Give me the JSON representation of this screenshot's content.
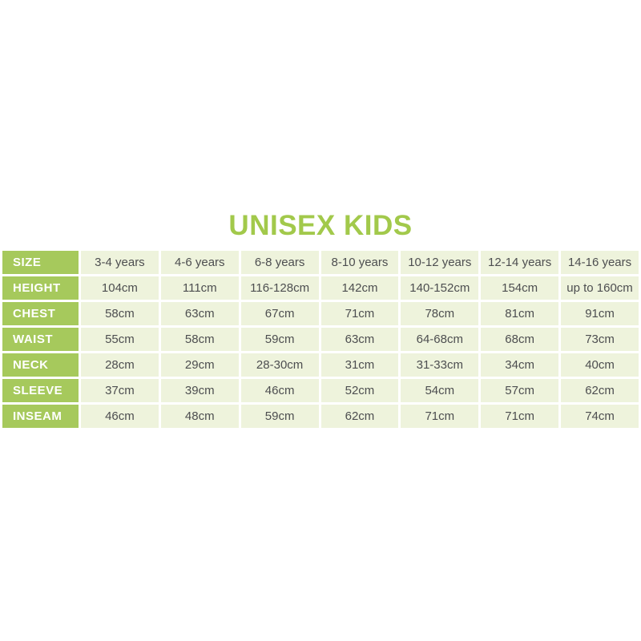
{
  "title": "UNISEX KIDS",
  "colors": {
    "title_green": "#a2c94b",
    "label_column_bg": "#a6c95c",
    "label_column_text": "#ffffff",
    "data_cell_bg": "#eef3dc",
    "data_cell_text": "#4d4e50",
    "cell_gap": "#ffffff"
  },
  "chart_data": {
    "type": "table",
    "title": "UNISEX KIDS",
    "rows": [
      {
        "label": "SIZE",
        "values": [
          "3-4 years",
          "4-6 years",
          "6-8 years",
          "8-10 years",
          "10-12 years",
          "12-14 years",
          "14-16 years"
        ]
      },
      {
        "label": "HEIGHT",
        "values": [
          "104cm",
          "111cm",
          "116-128cm",
          "142cm",
          "140-152cm",
          "154cm",
          "up to 160cm"
        ]
      },
      {
        "label": "CHEST",
        "values": [
          "58cm",
          "63cm",
          "67cm",
          "71cm",
          "78cm",
          "81cm",
          "91cm"
        ]
      },
      {
        "label": "WAIST",
        "values": [
          "55cm",
          "58cm",
          "59cm",
          "63cm",
          "64-68cm",
          "68cm",
          "73cm"
        ]
      },
      {
        "label": "NECK",
        "values": [
          "28cm",
          "29cm",
          "28-30cm",
          "31cm",
          "31-33cm",
          "34cm",
          "40cm"
        ]
      },
      {
        "label": "SLEEVE",
        "values": [
          "37cm",
          "39cm",
          "46cm",
          "52cm",
          "54cm",
          "57cm",
          "62cm"
        ]
      },
      {
        "label": "INSEAM",
        "values": [
          "46cm",
          "48cm",
          "59cm",
          "62cm",
          "71cm",
          "71cm",
          "74cm"
        ]
      }
    ]
  }
}
